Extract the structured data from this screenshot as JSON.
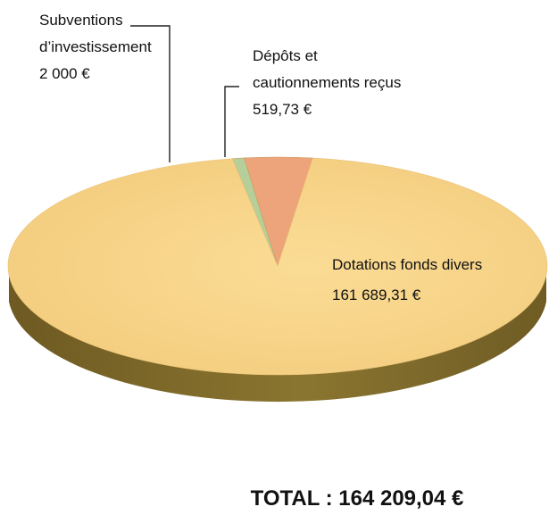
{
  "chart_data": {
    "type": "pie",
    "style": "3d",
    "slices": [
      {
        "lines": [
          "Subventions",
          "d’investissement",
          "2 000 €"
        ],
        "value": 2000.0,
        "color": "#b6cf9a"
      },
      {
        "lines": [
          "Dépôts et",
          "cautionnements reçus",
          "519,73 €"
        ],
        "value": 519.73,
        "color": "#eea47a"
      },
      {
        "lines": [
          "Dotations fonds divers",
          "161 689,31 €"
        ],
        "value": 161689.31,
        "color": "#f8d58a"
      }
    ],
    "total_label": "TOTAL : 164 209,04 €"
  }
}
